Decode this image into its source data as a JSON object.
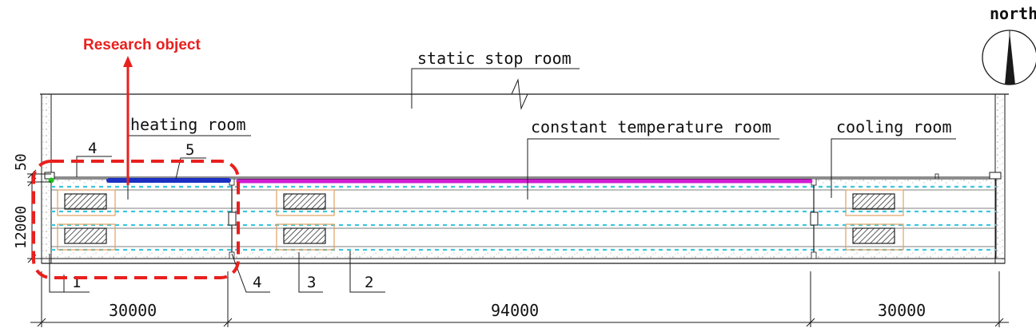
{
  "colors": {
    "line": "#1a1a1a",
    "highlight_red": "#e8201e",
    "heating_bar": "#1b2fc4",
    "constant_bar": "#d21bd2",
    "cyan_dash": "#3cc7de",
    "orange_box": "#e0a060",
    "green_dot": "#19c419"
  },
  "labels": {
    "research_object": "Research object",
    "north": "north",
    "static_stop_room": "static stop room",
    "heating_room": "heating room",
    "constant_temperature_room": "constant temperature room",
    "cooling_room": "cooling room"
  },
  "dimensions": {
    "height_top": "50",
    "height_main": "12000",
    "span_left": "30000",
    "span_middle": "94000",
    "span_right": "30000"
  },
  "callouts": {
    "c1": "1",
    "c2": "2",
    "c3": "3",
    "c4_top": "4",
    "c4_bottom": "4",
    "c5": "5"
  },
  "icons": {
    "north_arrow": "north-arrow-icon",
    "hatch_blocks": "hatched-block-icon"
  }
}
